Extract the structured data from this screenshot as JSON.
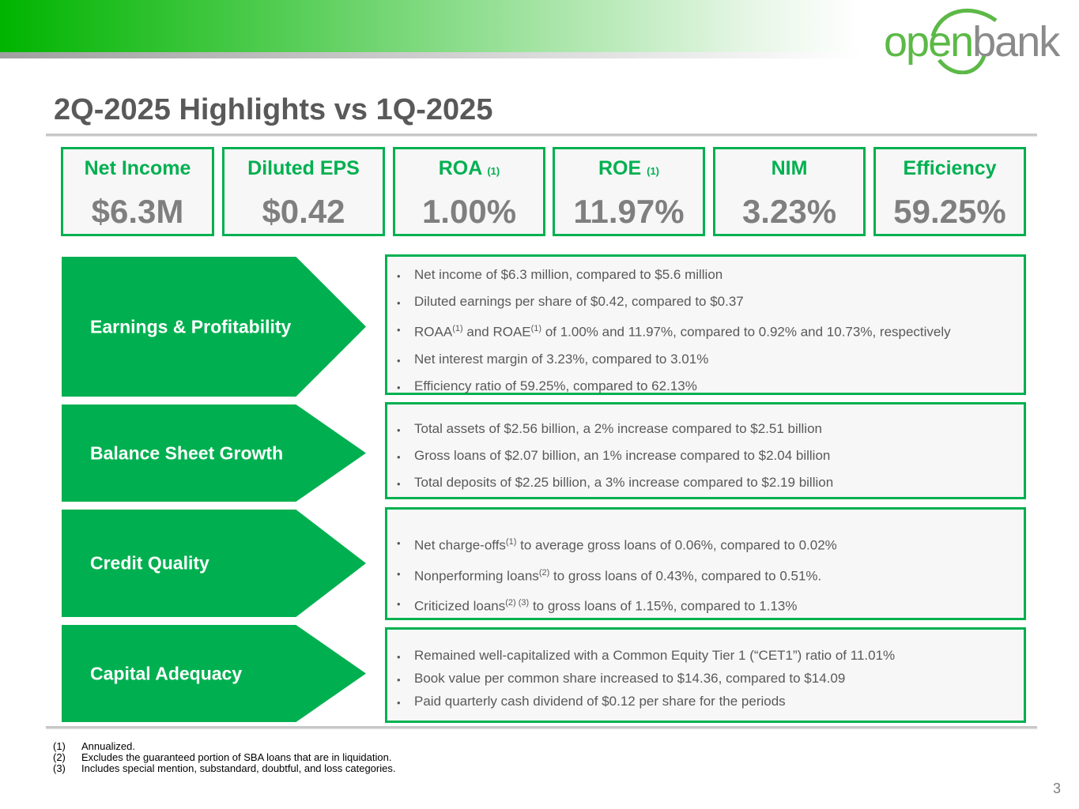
{
  "logo": {
    "open": "open",
    "bank": "bank"
  },
  "title": "2Q-2025 Highlights vs 1Q-2025",
  "metrics": [
    {
      "label": "Net Income",
      "note": "",
      "value": "$6.3M"
    },
    {
      "label": "Diluted EPS",
      "note": "",
      "value": "$0.42"
    },
    {
      "label": "ROA",
      "note": "(1)",
      "value": "1.00%"
    },
    {
      "label": "ROE",
      "note": "(1)",
      "value": "11.97%"
    },
    {
      "label": "NIM",
      "note": "",
      "value": "3.23%"
    },
    {
      "label": "Efficiency",
      "note": "",
      "value": "59.25%"
    }
  ],
  "sections": [
    {
      "label": "Earnings & Profitability",
      "bullets": [
        "Net income of $6.3 million, compared to $5.6 million",
        "Diluted earnings per share of $0.42, compared to $0.37",
        {
          "a": "ROAA",
          "s1": "(1)",
          "b": " and ROAE",
          "s2": "(1)",
          "c": " of 1.00% and 11.97%, compared to 0.92% and 10.73%, respectively"
        },
        "Net interest margin of 3.23%, compared to 3.01%",
        "Efficiency ratio of 59.25%, compared to 62.13%"
      ]
    },
    {
      "label": "Balance Sheet Growth",
      "bullets": [
        "Total assets of $2.56 billion, a 2% increase compared to $2.51 billion",
        "Gross loans of $2.07 billion, an 1% increase compared to $2.04 billion",
        "Total deposits of $2.25 billion, a 3% increase compared to $2.19 billion"
      ]
    },
    {
      "label": "Credit Quality",
      "bullets": [
        {
          "a": "Net charge-offs",
          "s1": "(1)",
          "b": " to average gross loans of 0.06%, compared to 0.02%"
        },
        {
          "a": "Nonperforming loans",
          "s1": "(2)",
          "b": " to gross loans of 0.43%, compared to 0.51%."
        },
        {
          "a": "Criticized loans",
          "s1": "(2) (3)",
          "b": " to gross loans of 1.15%, compared to 1.13%"
        }
      ]
    },
    {
      "label": "Capital Adequacy",
      "bullets": [
        "Remained well-capitalized with a Common Equity Tier 1 (“CET1”) ratio of 11.01%",
        "Book value per common share increased to $14.36, compared to $14.09",
        "Paid quarterly cash dividend of $0.12 per share for the periods"
      ]
    }
  ],
  "footnotes": [
    {
      "n": "(1)",
      "t": "Annualized."
    },
    {
      "n": "(2)",
      "t": "Excludes the guaranteed portion of SBA loans that are in liquidation."
    },
    {
      "n": "(3)",
      "t": "Includes special mention, substandard, doubtful, and loss categories."
    }
  ],
  "page_number": "3",
  "colors": {
    "accent": "#00b050",
    "value_gray": "#7f7f7f",
    "title_gray": "#595959"
  }
}
